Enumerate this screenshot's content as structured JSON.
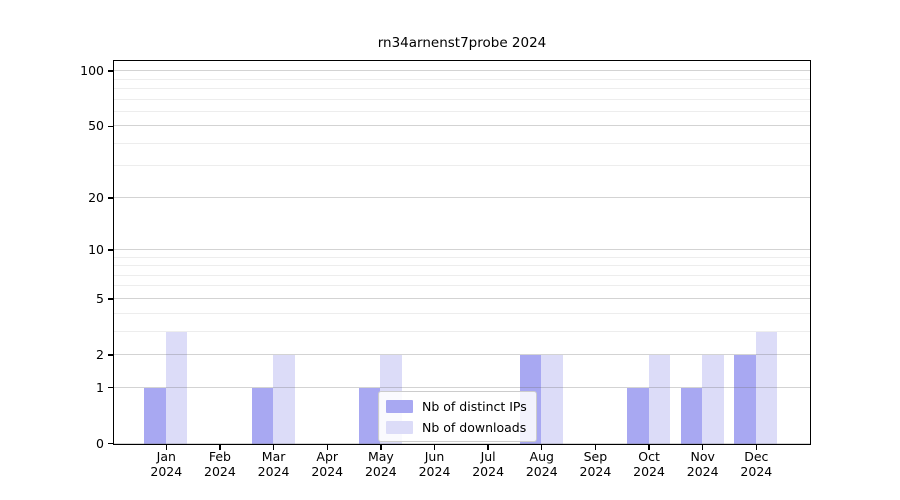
{
  "title": "rn34arnenst7probe 2024",
  "chart_data": {
    "type": "bar",
    "title": "rn34arnenst7probe 2024",
    "categories": [
      "Jan",
      "Feb",
      "Mar",
      "Apr",
      "May",
      "Jun",
      "Jul",
      "Aug",
      "Sep",
      "Oct",
      "Nov",
      "Dec"
    ],
    "x_year_label": "2024",
    "series": [
      {
        "name": "Nb of distinct IPs",
        "color": "#a8a8f2",
        "values": [
          1,
          0,
          1,
          0,
          1,
          0,
          0,
          2,
          0,
          1,
          1,
          2
        ]
      },
      {
        "name": "Nb of downloads",
        "color": "#dcdcf8",
        "values": [
          3,
          0,
          2,
          0,
          2,
          0,
          0,
          2,
          0,
          2,
          2,
          3
        ]
      }
    ],
    "y_axis": {
      "scale": "pseudo-log (position proportional to log10 of 1+value)",
      "major_ticks": [
        0,
        1,
        2,
        5,
        10,
        20,
        50,
        100
      ],
      "minor_ticks": [
        3,
        4,
        6,
        7,
        8,
        9,
        30,
        40,
        60,
        70,
        80,
        90
      ],
      "range": [
        0,
        116
      ]
    },
    "xlabel": "",
    "ylabel": "",
    "grid": "horizontal major and minor gridlines",
    "legend_position": "inside axes, lower center-left"
  },
  "colors": {
    "background": "#ffffff",
    "spine": "#000000",
    "grid_major": "#d4d4d4",
    "grid_minor": "#ededed",
    "legend_border": "#cccccc",
    "text": "#000000"
  }
}
